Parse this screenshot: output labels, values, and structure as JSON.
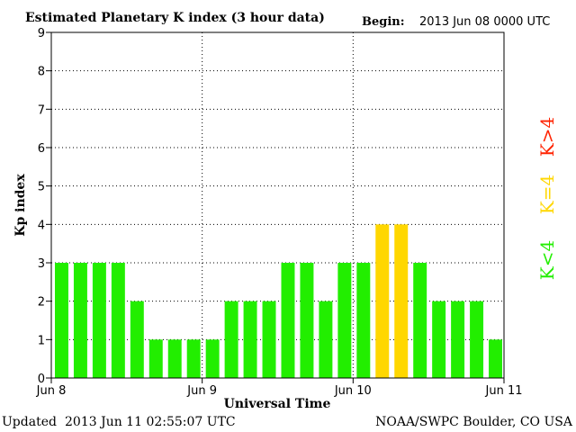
{
  "header": {
    "title": "Estimated Planetary K index (3 hour data)",
    "begin_label": "Begin:",
    "begin_value": "2013 Jun 08 0000 UTC"
  },
  "footer": {
    "updated_label": "Updated",
    "updated_value": "2013 Jun 11 02:55:07 UTC",
    "credit": "NOAA/SWPC Boulder, CO USA"
  },
  "legend": [
    {
      "label": "K>4",
      "color": "#ff2200"
    },
    {
      "label": "K=4",
      "color": "#ffd700"
    },
    {
      "label": "K<4",
      "color": "#22ee00"
    }
  ],
  "chart_data": {
    "type": "bar",
    "title": "Estimated Planetary K index (3 hour data)",
    "xlabel": "Universal Time",
    "ylabel": "Kp index",
    "ylim": [
      0,
      9
    ],
    "yticks": [
      "0",
      "1",
      "2",
      "3",
      "4",
      "5",
      "6",
      "7",
      "8",
      "9"
    ],
    "xticks": [
      "Jun 8",
      "Jun 9",
      "Jun 10",
      "Jun 11"
    ],
    "grid": true,
    "values": [
      3,
      3,
      3,
      3,
      2,
      1,
      1,
      1,
      1,
      2,
      2,
      2,
      3,
      3,
      2,
      3,
      3,
      4,
      4,
      3,
      2,
      2,
      2,
      1
    ],
    "colors": {
      "below": "#22ee00",
      "equal": "#ffd700",
      "above": "#ff2200"
    }
  }
}
